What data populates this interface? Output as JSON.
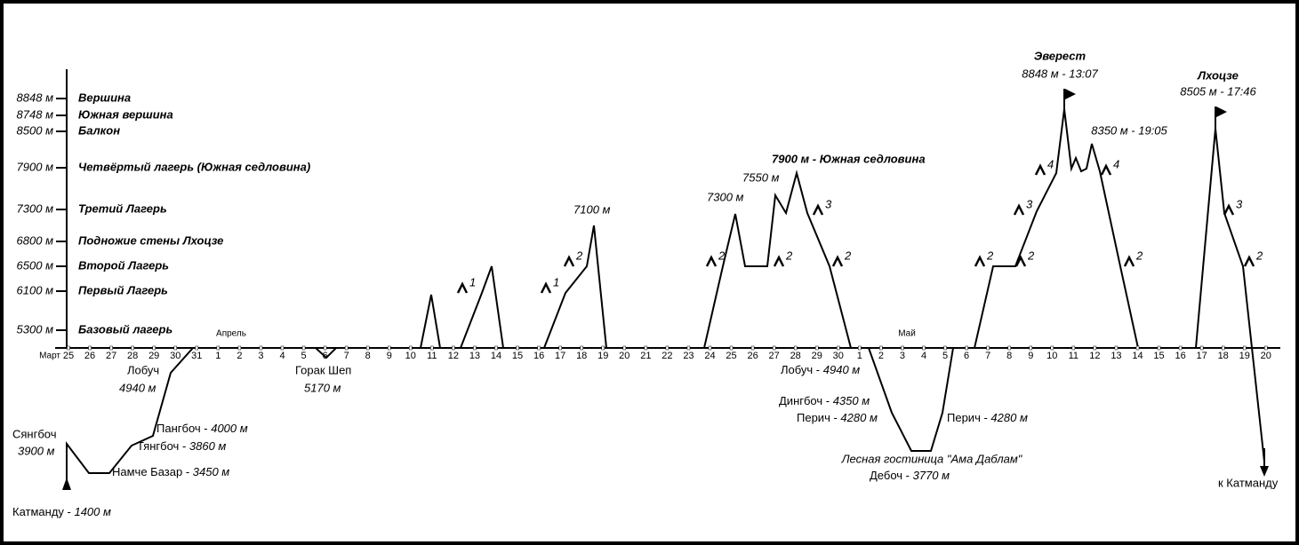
{
  "elevations": [
    {
      "height": "8848 м",
      "label": "Вершина"
    },
    {
      "height": "8748 м",
      "label": "Южная вершина"
    },
    {
      "height": "8500 м",
      "label": "Балкон"
    },
    {
      "height": "7900 м",
      "label": "Четвёртый лагерь (Южная седловина)"
    },
    {
      "height": "7300 м",
      "label": "Третий Лагерь"
    },
    {
      "height": "6800 м",
      "label": "Подножие стены Лхоцзе"
    },
    {
      "height": "6500 м",
      "label": "Второй Лагерь"
    },
    {
      "height": "6100 м",
      "label": "Первый Лагерь"
    },
    {
      "height": "5300 м",
      "label": "Базовый лагерь"
    }
  ],
  "timeline": [
    {
      "month": "Март",
      "days": [
        "25",
        "26",
        "27",
        "28",
        "29",
        "30",
        "31"
      ]
    },
    {
      "month": "Апрель",
      "days": [
        "1",
        "2",
        "3",
        "4",
        "5",
        "6",
        "7",
        "8",
        "9",
        "10",
        "11",
        "12",
        "13",
        "14",
        "15",
        "16",
        "17",
        "18",
        "19",
        "20",
        "21",
        "22",
        "23",
        "24",
        "25",
        "26",
        "27",
        "28",
        "29",
        "30"
      ]
    },
    {
      "month": "Май",
      "days": [
        "1",
        "2",
        "3",
        "4",
        "5",
        "6",
        "7",
        "8",
        "9",
        "10",
        "11",
        "12",
        "13",
        "14",
        "15",
        "16",
        "17",
        "18",
        "19",
        "20"
      ]
    }
  ],
  "summits": {
    "everest": {
      "name": "Эверест",
      "detail": "8848 м - 13:07"
    },
    "lhotse": {
      "name": "Лхоцзе",
      "detail": "8505 м - 17:46"
    },
    "turn": "8350 м - 19:05"
  },
  "peaks": [
    "7900 м - Южная седловина",
    "7550 м",
    "7300 м",
    "7100 м"
  ],
  "trek_in": {
    "syangboche": {
      "name": "Сянгбоч",
      "height": "3900 м"
    },
    "lobuche": {
      "name": "Лобуч",
      "height": "4940 м"
    },
    "gorakshep": {
      "name": "Горак Шеп",
      "height": "5170 м"
    },
    "pangboche": {
      "name": "Пангбоч - ",
      "height": "4000 м"
    },
    "tengboche": {
      "name": "Тянгбоч - ",
      "height": "3860 м"
    },
    "namche": {
      "name": "Намче Базар - ",
      "height": "3450 м"
    },
    "kathmandu": {
      "name": "Катманду - ",
      "height": "1400 м"
    }
  },
  "trek_out": {
    "lobuche": {
      "name": "Лобуч - ",
      "height": "4940 м"
    },
    "dingboche": {
      "name": "Дингбоч - ",
      "height": "4350 м"
    },
    "pheriche_a": {
      "name": "Перич - ",
      "height": "4280 м"
    },
    "pheriche_b": {
      "name": "Перич - ",
      "height": "4280 м"
    },
    "lodge": "Лесная гостиница \"Ама Даблам\"",
    "deboche": {
      "name": "Дебоч - ",
      "height": "3770 м"
    },
    "kathmandu": "к Катманду"
  },
  "camps": [
    "1",
    "1",
    "2",
    "2",
    "2",
    "3",
    "2",
    "2",
    "2",
    "3",
    "4",
    "4",
    "2",
    "3",
    "2"
  ]
}
